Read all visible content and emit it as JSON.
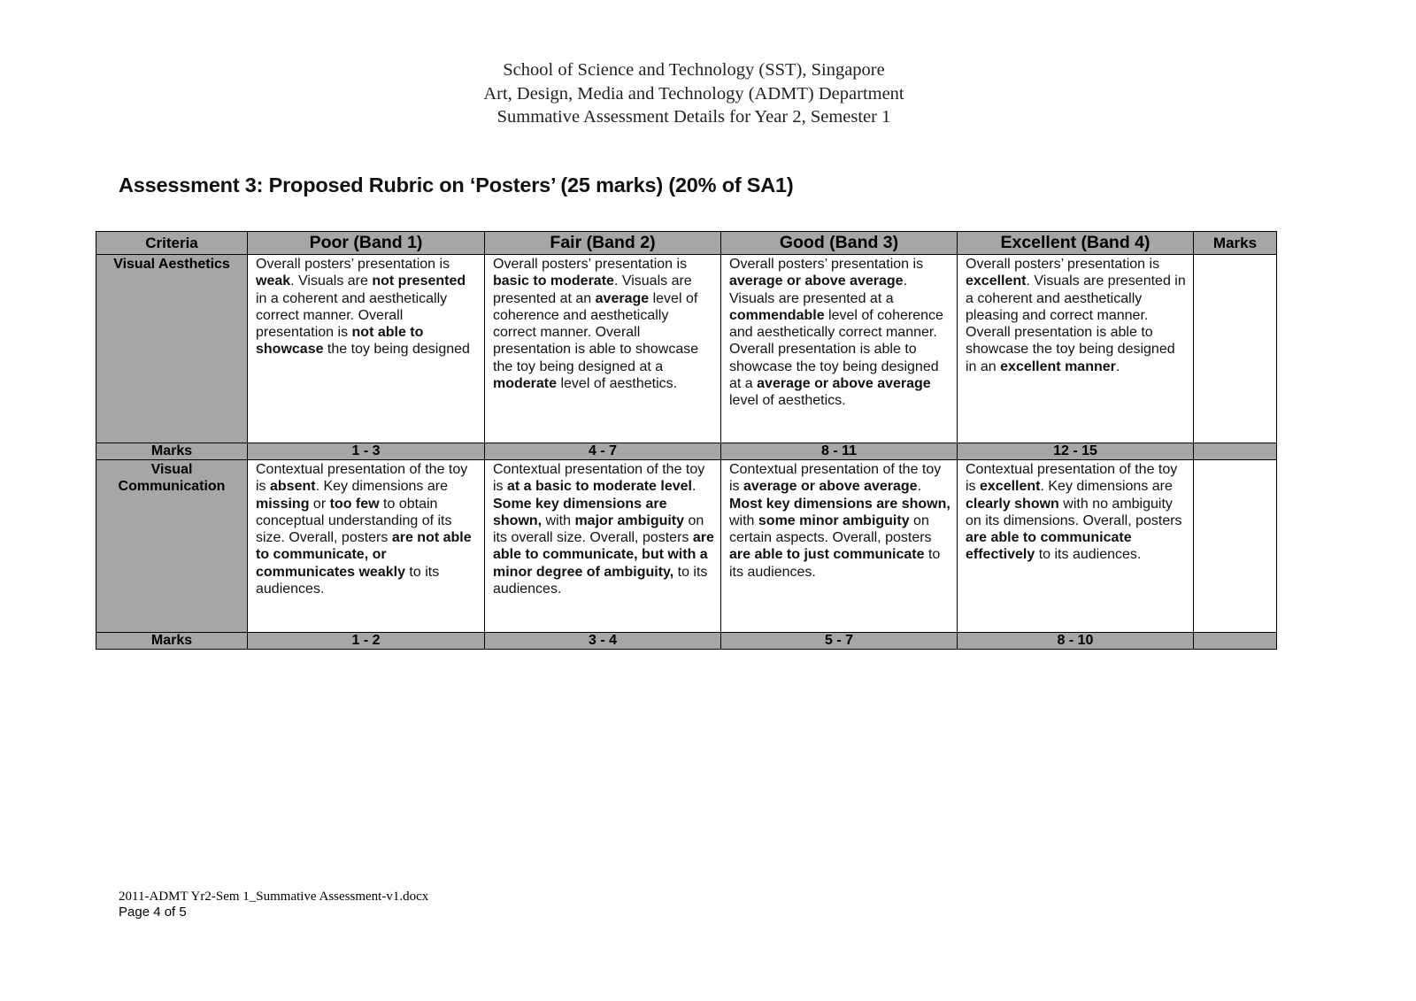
{
  "header": {
    "lines": [
      "School of Science and Technology (SST), Singapore",
      "Art, Design, Media and Technology (ADMT) Department",
      "Summative Assessment Details for Year 2, Semester 1"
    ]
  },
  "title": "Assessment 3: Proposed Rubric on ‘Posters’ (25 marks) (20% of SA1)",
  "table": {
    "headers": [
      "Criteria",
      "Poor (Band 1)",
      "Fair (Band 2)",
      "Good (Band 3)",
      "Excellent (Band 4)",
      "Marks"
    ],
    "rows": [
      {
        "criteria": "Visual Aesthetics",
        "cells": [
          [
            {
              "t": "Overall posters’ presentation is "
            },
            {
              "t": "weak",
              "b": true
            },
            {
              "t": ". Visuals are "
            },
            {
              "t": "not presented",
              "b": true
            },
            {
              "t": " in a coherent and aesthetically correct manner. Overall presentation is "
            },
            {
              "t": "not able to showcase",
              "b": true
            },
            {
              "t": " the toy being designed"
            }
          ],
          [
            {
              "t": "Overall posters’ presentation is "
            },
            {
              "t": "basic to moderate",
              "b": true
            },
            {
              "t": ". Visuals are presented at an "
            },
            {
              "t": "average",
              "b": true
            },
            {
              "t": " level of coherence and aesthetically correct manner. Overall presentation is able to showcase the toy being designed at a "
            },
            {
              "t": "moderate",
              "b": true
            },
            {
              "t": " level of aesthetics."
            }
          ],
          [
            {
              "t": "Overall posters’ presentation is "
            },
            {
              "t": "average or above average",
              "b": true
            },
            {
              "t": ". Visuals are presented at a "
            },
            {
              "t": "commendable",
              "b": true
            },
            {
              "t": " level of coherence and aesthetically correct manner. Overall presentation is able to showcase the toy being designed at a "
            },
            {
              "t": "average or above average",
              "b": true
            },
            {
              "t": " level of aesthetics."
            }
          ],
          [
            {
              "t": "Overall posters’ presentation is "
            },
            {
              "t": "excellent",
              "b": true
            },
            {
              "t": ". Visuals are presented in a coherent and aesthetically pleasing and correct manner. Overall presentation is able to showcase the toy being designed in an "
            },
            {
              "t": "excellent manner",
              "b": true
            },
            {
              "t": "."
            }
          ]
        ],
        "marks_label": "Marks",
        "marks": [
          "1 - 3",
          "4 - 7",
          "8 - 11",
          "12 - 15"
        ]
      },
      {
        "criteria": "Visual Communication",
        "cells": [
          [
            {
              "t": "Contextual presentation of the toy is "
            },
            {
              "t": "absent",
              "b": true
            },
            {
              "t": ". Key dimensions are "
            },
            {
              "t": "missing",
              "b": true
            },
            {
              "t": " or "
            },
            {
              "t": "too few",
              "b": true
            },
            {
              "t": " to obtain conceptual understanding of its size. Overall, posters "
            },
            {
              "t": "are not able to communicate, or communicates weakly",
              "b": true
            },
            {
              "t": " to its audiences."
            }
          ],
          [
            {
              "t": "Contextual presentation of the toy is "
            },
            {
              "t": "at a basic to moderate level",
              "b": true
            },
            {
              "t": ". "
            },
            {
              "t": "Some key dimensions are shown,",
              "b": true
            },
            {
              "t": " with "
            },
            {
              "t": "major ambiguity",
              "b": true
            },
            {
              "t": " on its overall size. Overall, posters "
            },
            {
              "t": "are able to communicate, but with a minor degree of ambiguity,",
              "b": true
            },
            {
              "t": " to its audiences."
            }
          ],
          [
            {
              "t": "Contextual presentation of the toy is "
            },
            {
              "t": "average or above average",
              "b": true
            },
            {
              "t": ". "
            },
            {
              "t": "Most key dimensions are shown,",
              "b": true
            },
            {
              "t": " with "
            },
            {
              "t": "some minor ambiguity",
              "b": true
            },
            {
              "t": " on certain aspects. Overall, posters "
            },
            {
              "t": "are able to just communicate",
              "b": true
            },
            {
              "t": " to its audiences."
            }
          ],
          [
            {
              "t": "Contextual presentation of the toy is "
            },
            {
              "t": "excellent",
              "b": true
            },
            {
              "t": ". Key dimensions are "
            },
            {
              "t": "clearly shown",
              "b": true
            },
            {
              "t": " with no ambiguity on its dimensions. Overall, posters "
            },
            {
              "t": "are able to communicate effectively",
              "b": true
            },
            {
              "t": " to its audiences."
            }
          ]
        ],
        "marks_label": "Marks",
        "marks": [
          "1 - 2",
          "3 - 4",
          "5 - 7",
          "8 - 10"
        ]
      }
    ]
  },
  "footer": {
    "filename": "2011-ADMT Yr2-Sem 1_Summative Assessment-v1.docx",
    "page": "Page 4 of 5"
  },
  "colors": {
    "header_fill": "#a6a6a6"
  }
}
